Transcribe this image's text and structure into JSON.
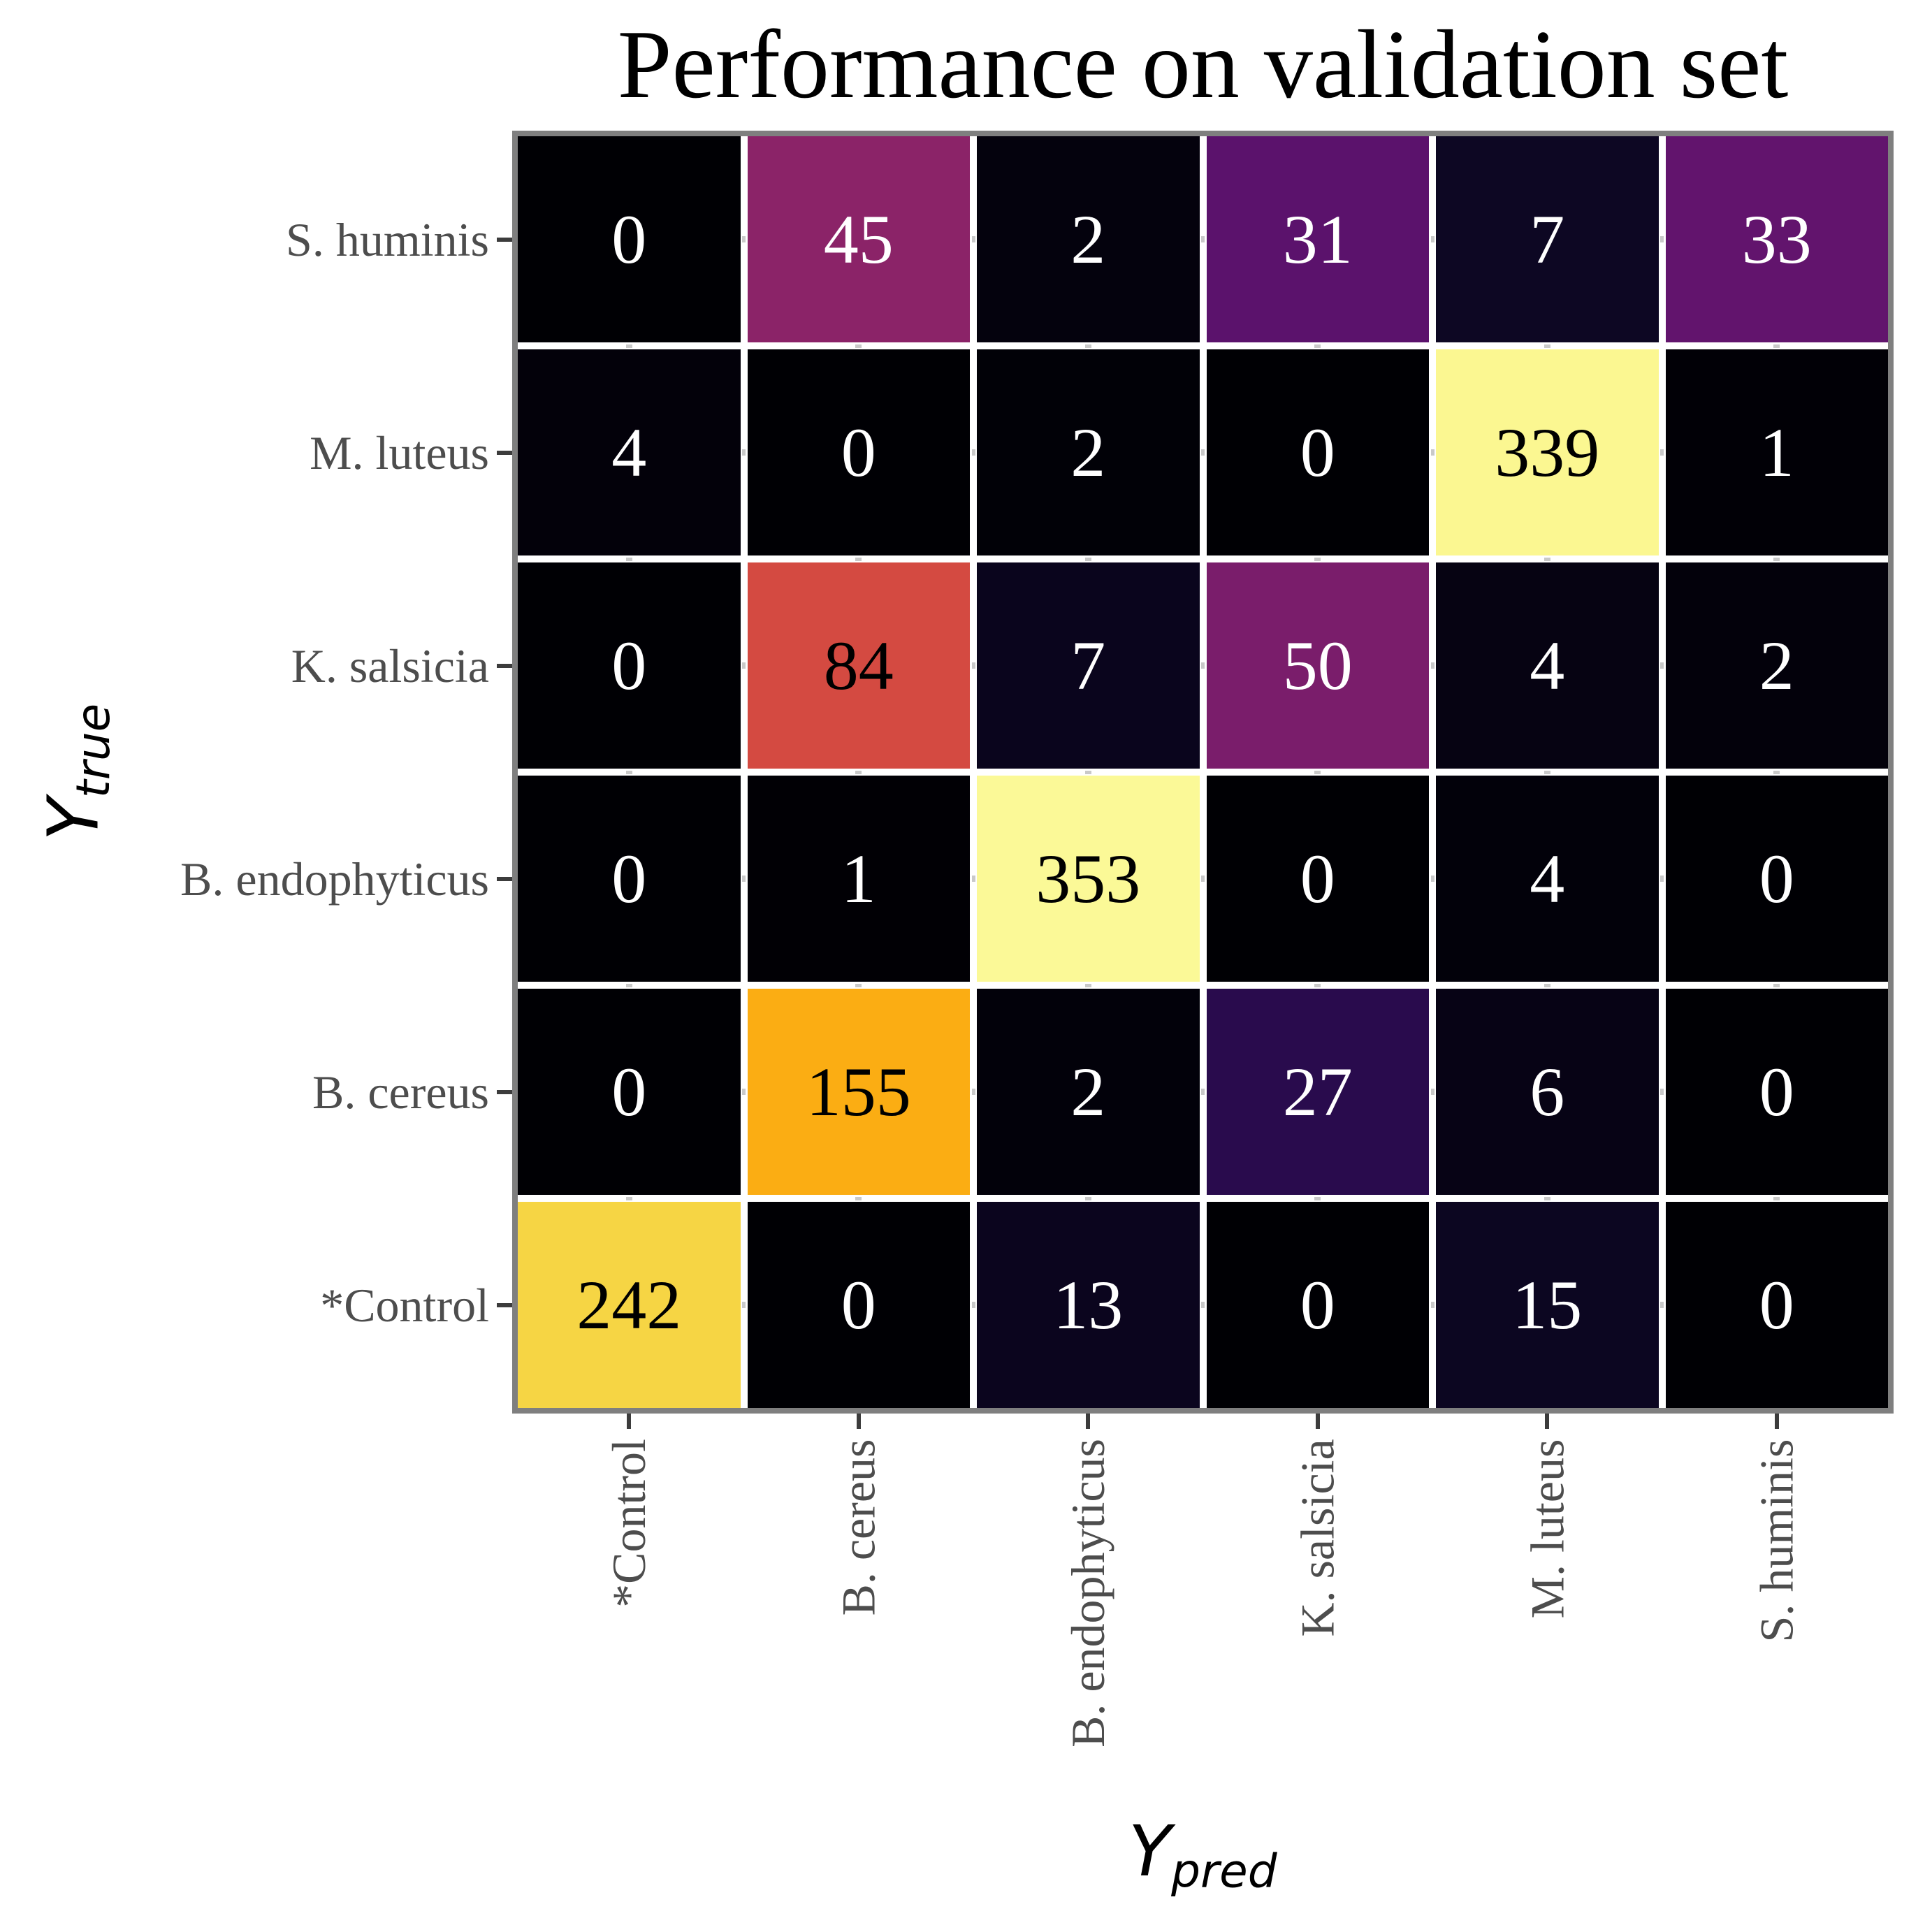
{
  "chart_data": {
    "type": "heatmap",
    "title": "Performance on validation set",
    "xlabel": "Y_pred",
    "ylabel": "Y_true",
    "x_categories": [
      "*Control",
      "B. cereus",
      "B. endophyticus",
      "K. salsicia",
      "M. luteus",
      "S. huminis"
    ],
    "y_categories": [
      "S. huminis",
      "M. luteus",
      "K. salsicia",
      "B. endophyticus",
      "B. cereus",
      "*Control"
    ],
    "values": [
      [
        0,
        45,
        2,
        31,
        7,
        33
      ],
      [
        4,
        0,
        2,
        0,
        339,
        1
      ],
      [
        0,
        84,
        7,
        50,
        4,
        2
      ],
      [
        0,
        1,
        353,
        0,
        4,
        0
      ],
      [
        0,
        155,
        2,
        27,
        6,
        0
      ],
      [
        242,
        0,
        13,
        0,
        15,
        0
      ]
    ],
    "colormap": "inferno",
    "normalization": "row_sum",
    "annotations_shown": true,
    "legend": "none",
    "grid_gaps": true
  },
  "axes": {
    "y_label_main": "Y",
    "y_label_sub": "true",
    "x_label_main": "Y",
    "x_label_sub": "pred"
  },
  "style": {
    "background": "#ffffff",
    "plot_border_color": "#7f7f7f",
    "gap_color": "#ffffff",
    "gap_stub_color": "#c9c9c9",
    "tick_label_color": "#4d4d4d",
    "tick_mark_color": "#3c3c3c",
    "title_color": "#000000",
    "axis_label_color": "#000000",
    "annotation_color_on_dark": "#ffffff",
    "annotation_color_on_light": "#000000"
  }
}
